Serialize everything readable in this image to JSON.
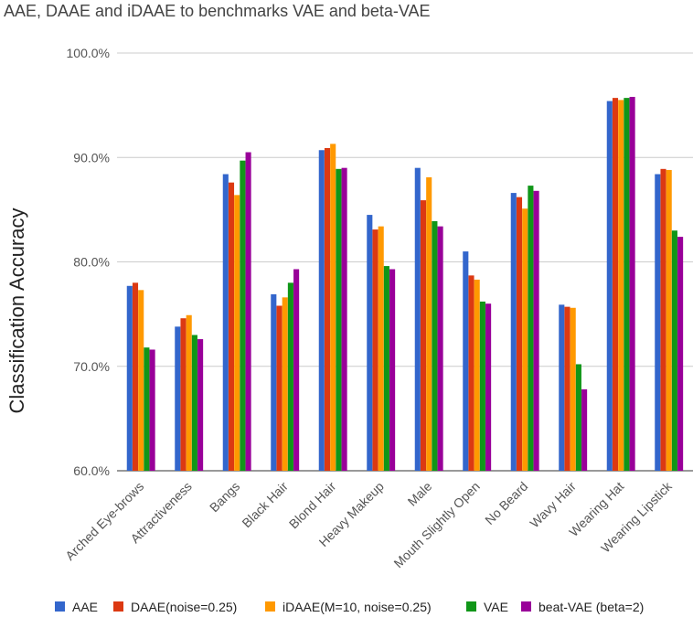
{
  "chart_data": {
    "type": "bar",
    "title": "AAE, DAAE and iDAAE to benchmarks VAE and beta-VAE",
    "xlabel": "",
    "ylabel": "Classification Accuracy",
    "ylim": [
      60,
      100
    ],
    "yticks": [
      "60.0%",
      "70.0%",
      "80.0%",
      "90.0%",
      "100.0%"
    ],
    "ytick_values": [
      60,
      70,
      80,
      90,
      100
    ],
    "grid": true,
    "legend_position": "bottom",
    "categories": [
      "Arched Eye-brows",
      "Attractiveness",
      "Bangs",
      "Black Hair",
      "Blond Hair",
      "Heavy Makeup",
      "Male",
      "Mouth Slightly Open",
      "No Beard",
      "Wavy Hair",
      "Wearing Hat",
      "Wearing Lipstick"
    ],
    "series": [
      {
        "name": "AAE",
        "color": "#3366cc",
        "values": [
          77.7,
          73.8,
          88.4,
          76.9,
          90.7,
          84.5,
          89.0,
          81.0,
          86.6,
          75.9,
          95.4,
          88.4
        ]
      },
      {
        "name": "DAAE(noise=0.25)",
        "color": "#dc3912",
        "values": [
          78.0,
          74.6,
          87.6,
          75.8,
          90.9,
          83.1,
          85.9,
          78.7,
          86.2,
          75.7,
          95.7,
          88.9
        ]
      },
      {
        "name": "iDAAE(M=10, noise=0.25)",
        "color": "#ff9900",
        "values": [
          77.3,
          74.9,
          86.4,
          76.6,
          91.3,
          83.4,
          88.1,
          78.3,
          85.1,
          75.6,
          95.5,
          88.8
        ]
      },
      {
        "name": "VAE",
        "color": "#109618",
        "values": [
          71.8,
          73.0,
          89.7,
          78.0,
          88.9,
          79.6,
          83.9,
          76.2,
          87.3,
          70.2,
          95.7,
          83.0
        ]
      },
      {
        "name": "beat-VAE (beta=2)",
        "color": "#990099",
        "values": [
          71.6,
          72.6,
          90.5,
          79.3,
          89.0,
          79.3,
          83.4,
          76.0,
          86.8,
          67.8,
          95.8,
          82.4
        ]
      }
    ]
  }
}
